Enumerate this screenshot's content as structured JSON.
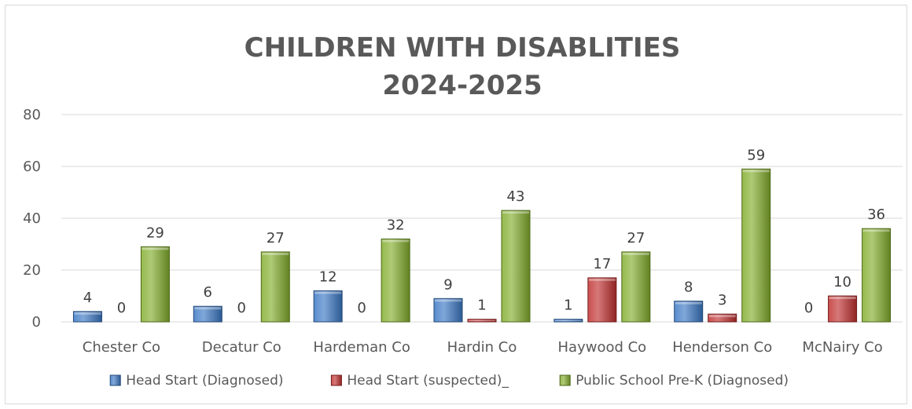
{
  "chart_data": {
    "type": "bar",
    "title_lines": [
      "CHILDREN WITH DISABLITIES",
      "2024-2025"
    ],
    "categories": [
      "Chester Co",
      "Decatur Co",
      "Hardeman Co",
      "Hardin Co",
      "Haywood Co",
      "Henderson Co",
      "McNairy Co"
    ],
    "series": [
      {
        "name": "Head Start (Diagnosed)",
        "color": "#3b78c4",
        "values": [
          4,
          6,
          12,
          9,
          1,
          8,
          0
        ]
      },
      {
        "name": "Head Start (suspected)_",
        "color": "#c0302f",
        "values": [
          0,
          0,
          0,
          1,
          17,
          3,
          10
        ]
      },
      {
        "name": "Public School Pre-K (Diagnosed)",
        "color": "#82ad2c",
        "values": [
          29,
          27,
          32,
          43,
          27,
          59,
          36
        ]
      }
    ],
    "y_ticks": [
      0,
      20,
      40,
      60,
      80
    ],
    "ylim": [
      0,
      80
    ],
    "grid": true,
    "legend_position": "bottom",
    "data_labels": true
  }
}
